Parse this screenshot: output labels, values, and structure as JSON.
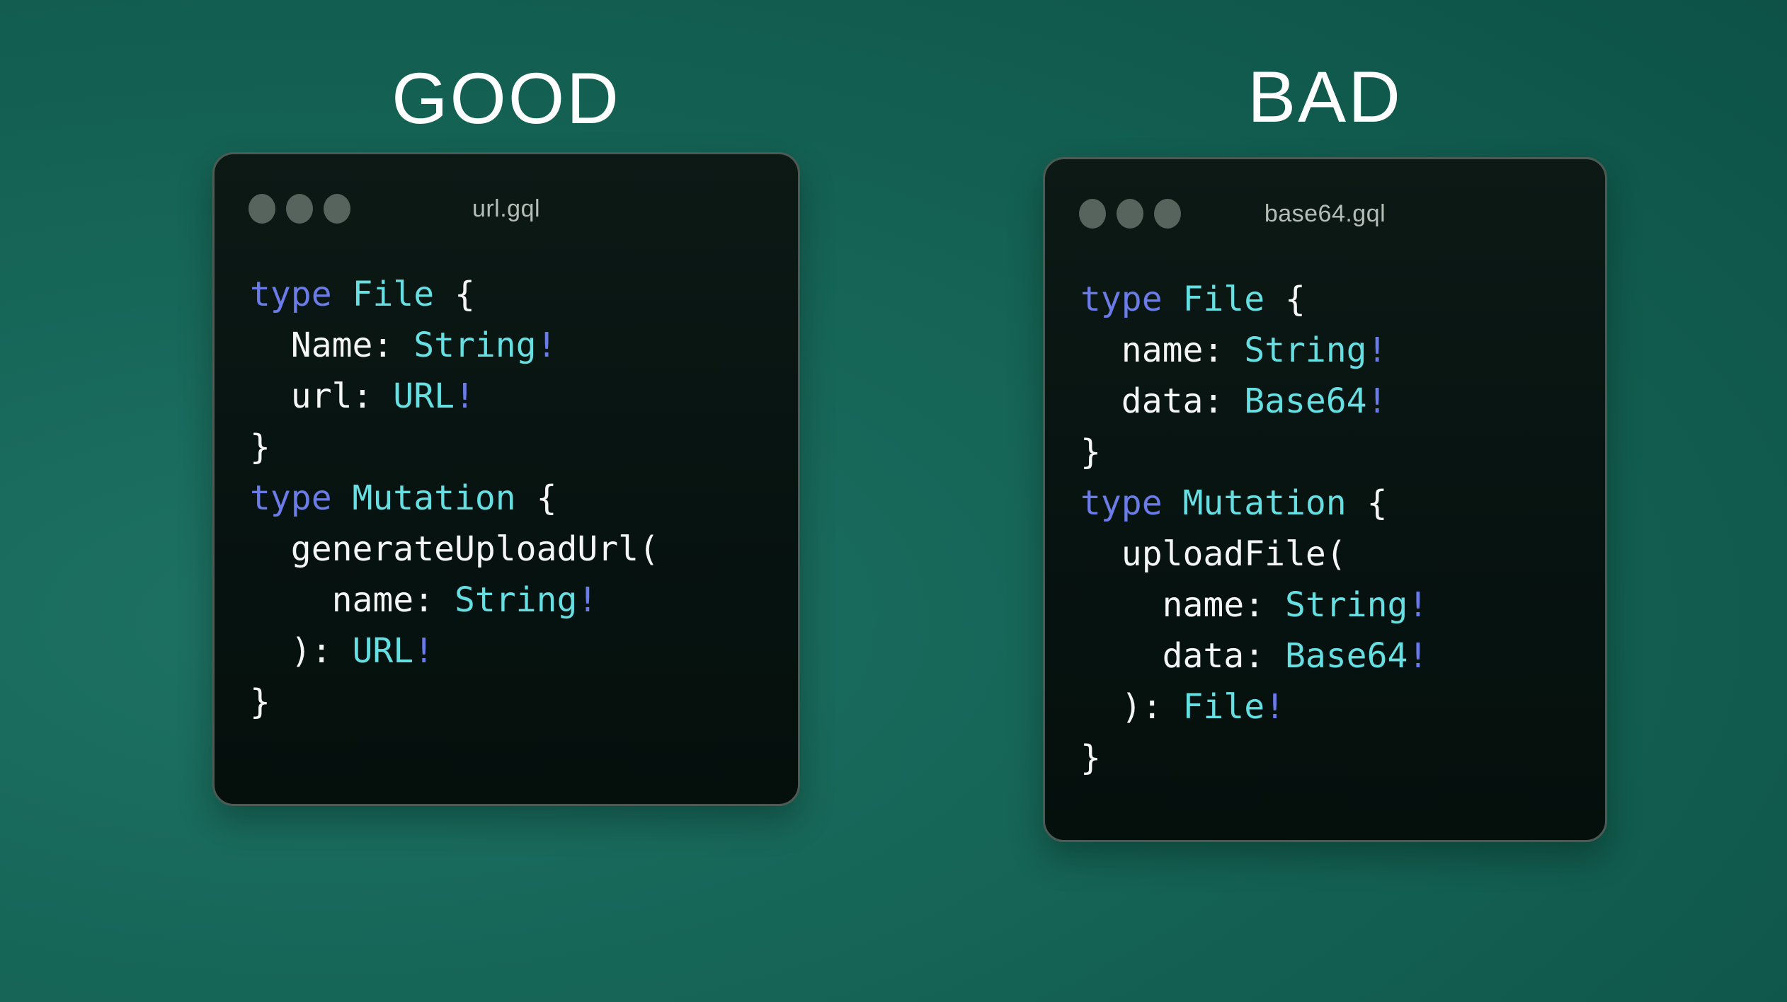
{
  "colors": {
    "background_center": "#1d7264",
    "background_mid": "#136052",
    "background_edge": "#0a4a40",
    "window_bg_top": "#0c1915",
    "window_bg_bottom": "#05100d",
    "window_border": "#4d5a54",
    "window_dot": "#57645e",
    "window_title": "#b6bdb9",
    "heading_text": "#ffffff",
    "code_plain": "#f3f6f4",
    "code_keyword": "#6b7be8",
    "code_type": "#66dfe3",
    "code_bang": "#6b7be8"
  },
  "panels": [
    {
      "heading": "GOOD",
      "filename": "url.gql",
      "window_dots": [
        "window-dot",
        "window-dot",
        "window-dot"
      ],
      "code": [
        [
          {
            "t": "type",
            "c": "keyword"
          },
          {
            "t": " ",
            "c": "plain"
          },
          {
            "t": "File",
            "c": "type"
          },
          {
            "t": " {",
            "c": "plain"
          }
        ],
        [
          {
            "t": "  Name: ",
            "c": "plain"
          },
          {
            "t": "String",
            "c": "type"
          },
          {
            "t": "!",
            "c": "bang"
          }
        ],
        [
          {
            "t": "  url: ",
            "c": "plain"
          },
          {
            "t": "URL",
            "c": "type"
          },
          {
            "t": "!",
            "c": "bang"
          }
        ],
        [
          {
            "t": "}",
            "c": "plain"
          }
        ],
        [
          {
            "t": "type",
            "c": "keyword"
          },
          {
            "t": " ",
            "c": "plain"
          },
          {
            "t": "Mutation",
            "c": "type"
          },
          {
            "t": " {",
            "c": "plain"
          }
        ],
        [
          {
            "t": "  generateUploadUrl(",
            "c": "plain"
          }
        ],
        [
          {
            "t": "    name: ",
            "c": "plain"
          },
          {
            "t": "String",
            "c": "type"
          },
          {
            "t": "!",
            "c": "bang"
          }
        ],
        [
          {
            "t": "  ): ",
            "c": "plain"
          },
          {
            "t": "URL",
            "c": "type"
          },
          {
            "t": "!",
            "c": "bang"
          }
        ],
        [
          {
            "t": "}",
            "c": "plain"
          }
        ]
      ]
    },
    {
      "heading": "BAD",
      "filename": "base64.gql",
      "window_dots": [
        "window-dot",
        "window-dot",
        "window-dot"
      ],
      "code": [
        [
          {
            "t": "type",
            "c": "keyword"
          },
          {
            "t": " ",
            "c": "plain"
          },
          {
            "t": "File",
            "c": "type"
          },
          {
            "t": " {",
            "c": "plain"
          }
        ],
        [
          {
            "t": "  name: ",
            "c": "plain"
          },
          {
            "t": "String",
            "c": "type"
          },
          {
            "t": "!",
            "c": "bang"
          }
        ],
        [
          {
            "t": "  data: ",
            "c": "plain"
          },
          {
            "t": "Base64",
            "c": "type"
          },
          {
            "t": "!",
            "c": "bang"
          }
        ],
        [
          {
            "t": "}",
            "c": "plain"
          }
        ],
        [
          {
            "t": "type",
            "c": "keyword"
          },
          {
            "t": " ",
            "c": "plain"
          },
          {
            "t": "Mutation",
            "c": "type"
          },
          {
            "t": " {",
            "c": "plain"
          }
        ],
        [
          {
            "t": "  uploadFile(",
            "c": "plain"
          }
        ],
        [
          {
            "t": "    name: ",
            "c": "plain"
          },
          {
            "t": "String",
            "c": "type"
          },
          {
            "t": "!",
            "c": "bang"
          }
        ],
        [
          {
            "t": "    data: ",
            "c": "plain"
          },
          {
            "t": "Base64",
            "c": "type"
          },
          {
            "t": "!",
            "c": "bang"
          }
        ],
        [
          {
            "t": "  ): ",
            "c": "plain"
          },
          {
            "t": "File",
            "c": "type"
          },
          {
            "t": "!",
            "c": "bang"
          }
        ],
        [
          {
            "t": "}",
            "c": "plain"
          }
        ]
      ]
    }
  ]
}
